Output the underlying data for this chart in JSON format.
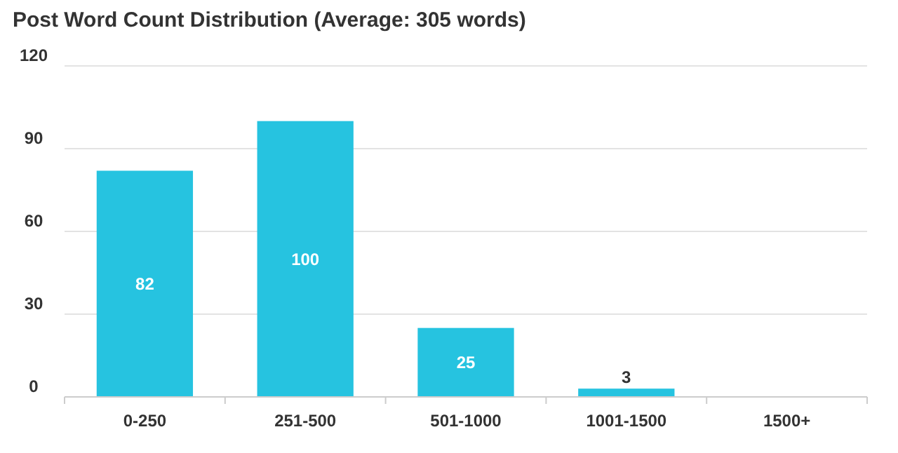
{
  "chart_data": {
    "type": "bar",
    "title": "Post Word Count Distribution (Average: 305 words)",
    "categories": [
      "0-250",
      "251-500",
      "501-1000",
      "1001-1500",
      "1500+"
    ],
    "values": [
      82,
      100,
      25,
      3,
      0
    ],
    "color": "#26c3e0",
    "value_labels": [
      "82",
      "100",
      "25",
      "3",
      null
    ],
    "ylim": [
      0,
      120
    ],
    "yticks": [
      0,
      30,
      60,
      90,
      120
    ],
    "grid": "y"
  }
}
